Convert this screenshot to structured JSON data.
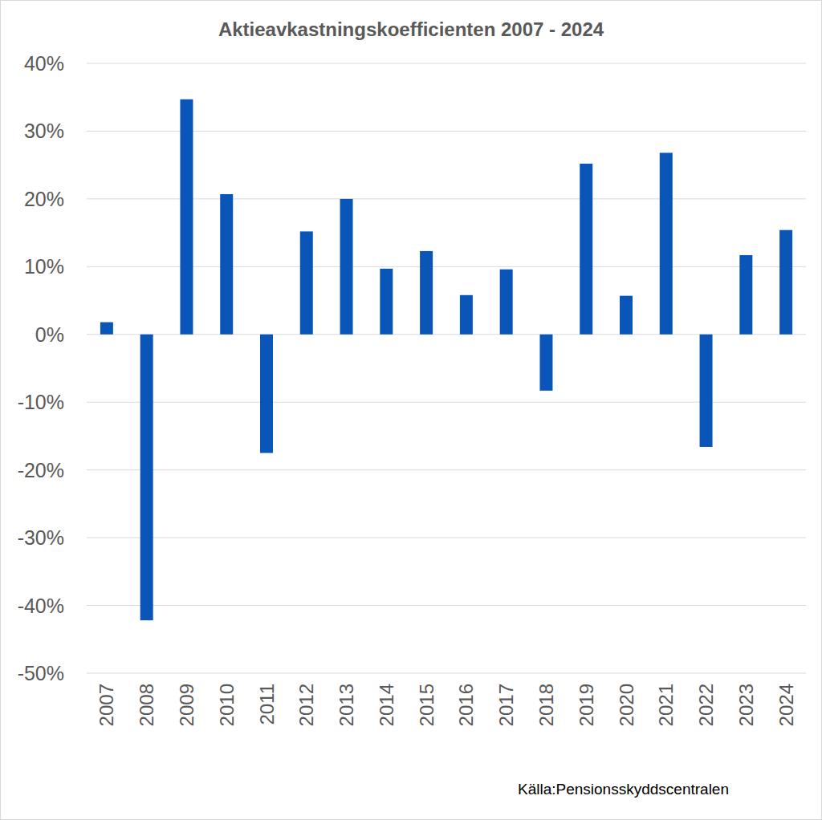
{
  "chart_data": {
    "type": "bar",
    "title": "Aktieavkastningskoefficienten 2007 - 2024",
    "source": "Källa:Pensionsskyddscentralen",
    "categories": [
      "2007",
      "2008",
      "2009",
      "2010",
      "2011",
      "2012",
      "2013",
      "2014",
      "2015",
      "2016",
      "2017",
      "2018",
      "2019",
      "2020",
      "2021",
      "2022",
      "2023",
      "2024"
    ],
    "values": [
      1.8,
      -42.2,
      34.7,
      20.7,
      -17.5,
      15.2,
      20.0,
      9.7,
      12.3,
      5.8,
      9.6,
      -8.3,
      25.2,
      5.7,
      26.8,
      -16.6,
      11.7,
      15.4
    ],
    "color": "#0a56b8",
    "ylim": [
      -50,
      40
    ],
    "yticks": [
      {
        "value": -50,
        "label": "-50%"
      },
      {
        "value": -40,
        "label": "-40%"
      },
      {
        "value": -30,
        "label": "-30%"
      },
      {
        "value": -20,
        "label": "-20%"
      },
      {
        "value": -10,
        "label": "-10%"
      },
      {
        "value": 0,
        "label": "0%"
      },
      {
        "value": 10,
        "label": "10%"
      },
      {
        "value": 20,
        "label": "20%"
      },
      {
        "value": 30,
        "label": "30%"
      },
      {
        "value": 40,
        "label": "40%"
      }
    ],
    "grid": true
  }
}
